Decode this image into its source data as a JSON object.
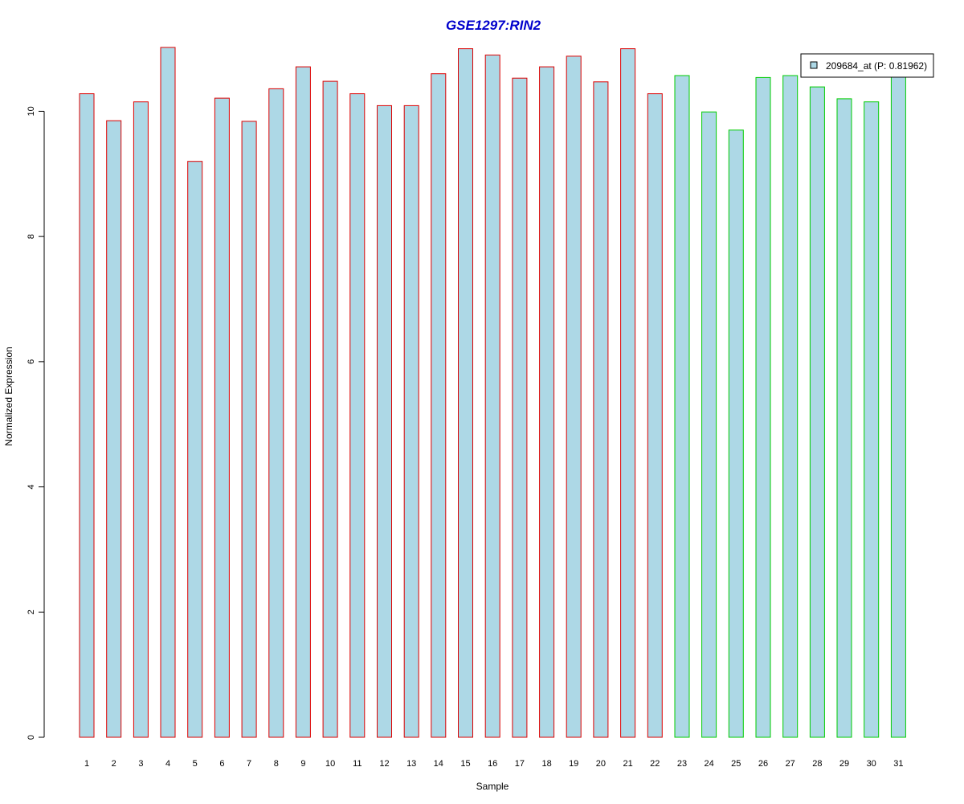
{
  "chart_data": {
    "type": "bar",
    "title": "GSE1297:RIN2",
    "xlabel": "Sample",
    "ylabel": "Normalized Expression",
    "ylim": [
      0,
      11.2
    ],
    "yticks": [
      0,
      2,
      4,
      6,
      8,
      10
    ],
    "categories": [
      "1",
      "2",
      "3",
      "4",
      "5",
      "6",
      "7",
      "8",
      "9",
      "10",
      "11",
      "12",
      "13",
      "14",
      "15",
      "16",
      "17",
      "18",
      "19",
      "20",
      "21",
      "22",
      "23",
      "24",
      "25",
      "26",
      "27",
      "28",
      "29",
      "30",
      "31"
    ],
    "series": [
      {
        "name": "209684_at (P: 0.81962)",
        "values": [
          10.28,
          9.85,
          10.15,
          11.02,
          9.2,
          10.21,
          9.84,
          10.36,
          10.71,
          10.48,
          10.28,
          10.09,
          10.09,
          10.6,
          11.0,
          10.9,
          10.53,
          10.71,
          10.88,
          10.47,
          11.0,
          10.28,
          10.57,
          9.99,
          9.7,
          10.54,
          10.57,
          10.39,
          10.2,
          10.15,
          10.57
        ],
        "groups": [
          "a",
          "a",
          "a",
          "a",
          "a",
          "a",
          "a",
          "a",
          "a",
          "a",
          "a",
          "a",
          "a",
          "a",
          "a",
          "a",
          "a",
          "a",
          "a",
          "a",
          "a",
          "a",
          "b",
          "b",
          "b",
          "b",
          "b",
          "b",
          "b",
          "b",
          "b"
        ]
      }
    ],
    "group_colors": {
      "a": "#dd0000",
      "b": "#00cc00"
    },
    "fill_color": "#add8e6",
    "title_color": "#0000cc",
    "grid": false,
    "legend_position": "top-right"
  }
}
